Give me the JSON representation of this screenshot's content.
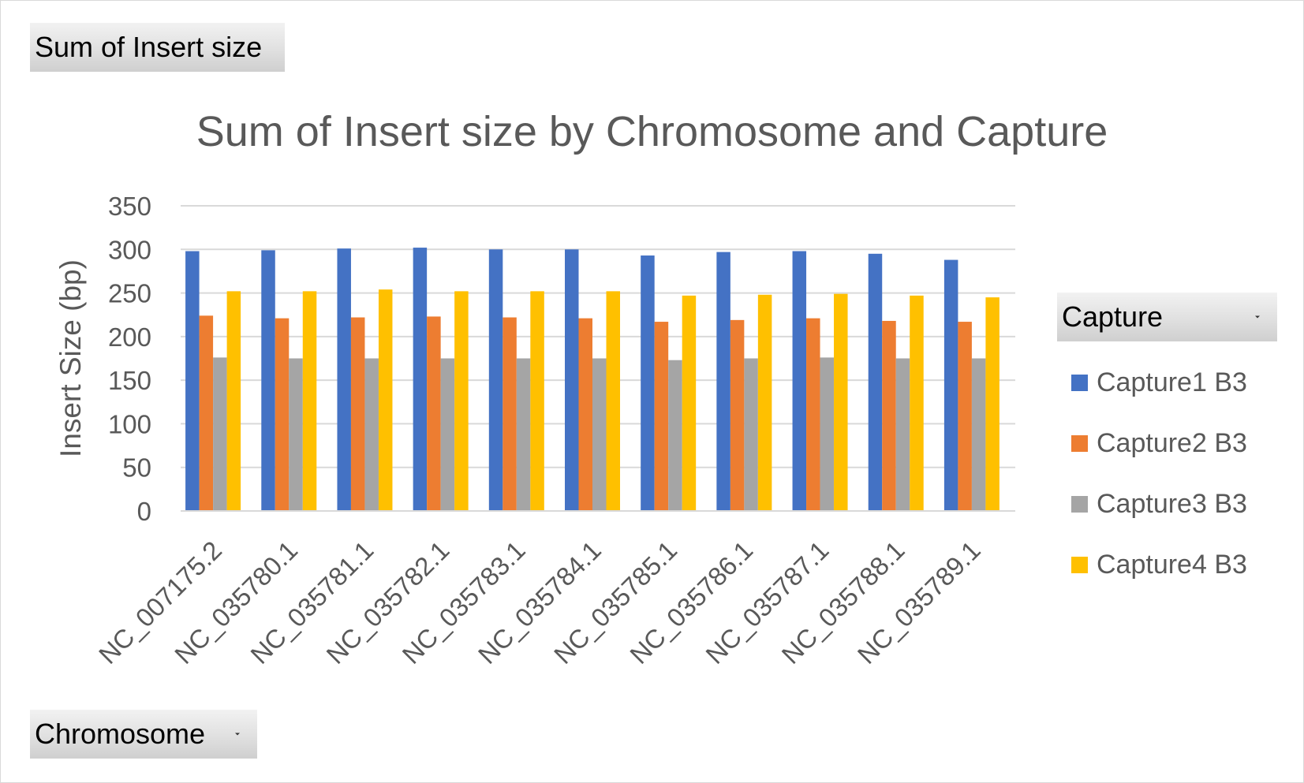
{
  "pivot_fields": {
    "value_field": "Sum of Insert size",
    "axis_field": "Chromosome",
    "legend_field": "Capture"
  },
  "icons": {
    "dropdown": "chevron-down-icon"
  },
  "colors": {
    "Capture1 B3": "#4472c4",
    "Capture2 B3": "#ed7d31",
    "Capture3 B3": "#a5a5a5",
    "Capture4 B3": "#ffc000",
    "text": "#595959",
    "gridline": "#d9d9d9"
  },
  "chart_data": {
    "type": "bar",
    "title": "Sum of Insert size by Chromosome and Capture",
    "xlabel": "",
    "ylabel": "Insert Size (bp)",
    "ylim": [
      0,
      350
    ],
    "yticks": [
      0,
      50,
      100,
      150,
      200,
      250,
      300,
      350
    ],
    "grid": true,
    "legend_position": "right",
    "categories": [
      "NC_007175.2",
      "NC_035780.1",
      "NC_035781.1",
      "NC_035782.1",
      "NC_035783.1",
      "NC_035784.1",
      "NC_035785.1",
      "NC_035786.1",
      "NC_035787.1",
      "NC_035788.1",
      "NC_035789.1"
    ],
    "series": [
      {
        "name": "Capture1 B3",
        "values": [
          298,
          299,
          301,
          302,
          300,
          300,
          293,
          297,
          298,
          295,
          288
        ]
      },
      {
        "name": "Capture2 B3",
        "values": [
          224,
          221,
          222,
          223,
          222,
          221,
          217,
          219,
          221,
          218,
          217
        ]
      },
      {
        "name": "Capture3 B3",
        "values": [
          176,
          175,
          175,
          175,
          175,
          175,
          173,
          175,
          176,
          175,
          175
        ]
      },
      {
        "name": "Capture4 B3",
        "values": [
          252,
          252,
          254,
          252,
          252,
          252,
          247,
          248,
          249,
          247,
          245
        ]
      }
    ]
  }
}
